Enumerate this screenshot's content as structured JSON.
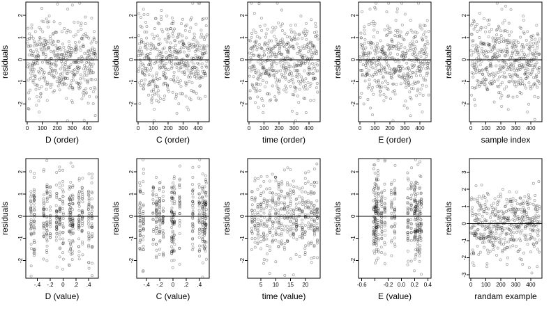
{
  "chart_data": [
    {
      "type": "scatter",
      "xlabel": "D (order)",
      "ylabel": "residuals",
      "xlim": [
        -10,
        475
      ],
      "ylim": [
        -2.8,
        2.6
      ],
      "xticks": [
        0,
        100,
        200,
        300,
        400
      ],
      "yticks": [
        -2,
        -1,
        0,
        1,
        2
      ],
      "n_points": 450,
      "x_kind": "index",
      "hline": 0,
      "seed": 11
    },
    {
      "type": "scatter",
      "xlabel": "C (order)",
      "ylabel": "residuals",
      "xlim": [
        -10,
        475
      ],
      "ylim": [
        -2.8,
        2.6
      ],
      "xticks": [
        0,
        100,
        200,
        300,
        400
      ],
      "yticks": [
        -2,
        -1,
        0,
        1,
        2
      ],
      "n_points": 450,
      "x_kind": "index",
      "hline": 0,
      "seed": 12
    },
    {
      "type": "scatter",
      "xlabel": "time (order)",
      "ylabel": "residuals",
      "xlim": [
        -10,
        475
      ],
      "ylim": [
        -2.8,
        2.6
      ],
      "xticks": [
        0,
        100,
        200,
        300,
        400
      ],
      "yticks": [
        -2,
        -1,
        0,
        1,
        2
      ],
      "n_points": 450,
      "x_kind": "index",
      "hline": 0,
      "seed": 13
    },
    {
      "type": "scatter",
      "xlabel": "E (order)",
      "ylabel": "residuals",
      "xlim": [
        -10,
        475
      ],
      "ylim": [
        -2.8,
        2.6
      ],
      "xticks": [
        0,
        100,
        200,
        300,
        400
      ],
      "yticks": [
        -2,
        -1,
        0,
        1,
        2
      ],
      "n_points": 450,
      "x_kind": "index",
      "hline": 0,
      "seed": 14
    },
    {
      "type": "scatter",
      "xlabel": "sample index",
      "ylabel": "residuals",
      "xlim": [
        -10,
        475
      ],
      "ylim": [
        -2.8,
        2.6
      ],
      "xticks": [
        0,
        100,
        200,
        300,
        400
      ],
      "yticks": [
        -2,
        -1,
        0,
        1,
        2
      ],
      "n_points": 450,
      "x_kind": "index",
      "hline": 0,
      "seed": 15
    },
    {
      "type": "scatter",
      "xlabel": "D (value)",
      "ylabel": "residuals",
      "xlim": [
        -0.58,
        0.55
      ],
      "ylim": [
        -2.8,
        2.6
      ],
      "xticks": [
        -0.4,
        -0.2,
        0,
        0.2,
        0.4
      ],
      "yticks": [
        -2,
        -1,
        0,
        1,
        2
      ],
      "n_points": 450,
      "x_kind": "columns",
      "x_levels": [
        -0.5,
        -0.45,
        -0.3,
        -0.25,
        -0.2,
        -0.1,
        -0.05,
        0,
        0.1,
        0.12,
        0.15,
        0.25,
        0.3,
        0.4,
        0.45
      ],
      "hline": 0,
      "seed": 21
    },
    {
      "type": "scatter",
      "xlabel": "C (value)",
      "ylabel": "residuals",
      "xlim": [
        -0.55,
        0.55
      ],
      "ylim": [
        -2.8,
        2.6
      ],
      "xticks": [
        -0.4,
        -0.2,
        0,
        0.2,
        0.4
      ],
      "yticks": [
        -2,
        -1,
        0,
        1,
        2
      ],
      "n_points": 450,
      "x_kind": "columns",
      "x_levels": [
        -0.5,
        -0.45,
        -0.3,
        -0.25,
        -0.2,
        -0.15,
        -0.02,
        0,
        0.02,
        0.1,
        0.3,
        0.4,
        0.45,
        0.48,
        0.5
      ],
      "hline": 0,
      "seed": 22
    },
    {
      "type": "scatter",
      "xlabel": "time (value)",
      "ylabel": "residuals",
      "xlim": [
        0.5,
        25
      ],
      "ylim": [
        -2.8,
        2.6
      ],
      "xticks": [
        5,
        10,
        15,
        20
      ],
      "yticks": [
        -2,
        -1,
        0,
        1,
        2
      ],
      "n_points": 450,
      "x_kind": "columns",
      "x_levels": [
        2,
        3,
        4,
        5,
        6,
        7,
        8,
        9,
        10,
        11,
        12,
        13,
        14,
        15,
        16,
        17,
        18,
        19,
        20,
        21,
        22,
        23,
        24
      ],
      "hline": 0,
      "seed": 23
    },
    {
      "type": "scatter",
      "xlabel": "E (value)",
      "ylabel": "residuals",
      "xlim": [
        -0.65,
        0.45
      ],
      "ylim": [
        -2.8,
        2.6
      ],
      "xticks": [
        -0.6,
        -0.4,
        -0.2,
        0,
        0.2,
        0.4
      ],
      "tick_labels": [
        "-0.6",
        "",
        "-0.2",
        "0.0",
        "0.2",
        "0.4"
      ],
      "yticks": [
        -2,
        -1,
        0,
        1,
        2
      ],
      "n_points": 450,
      "x_kind": "columns",
      "x_levels": [
        -0.42,
        -0.4,
        -0.38,
        -0.35,
        -0.3,
        -0.25,
        -0.15,
        -0.1,
        0.1,
        0.15,
        0.2,
        0.22,
        0.25,
        0.28,
        0.3
      ],
      "hline": 0,
      "seed": 24
    },
    {
      "type": "scatter",
      "xlabel": "randam example",
      "ylabel": "residuals",
      "xlim": [
        -10,
        475
      ],
      "ylim": [
        -3.2,
        3.8
      ],
      "xticks": [
        0,
        100,
        200,
        300,
        400
      ],
      "yticks": [
        -3,
        -2,
        -1,
        0,
        1,
        2,
        3
      ],
      "n_points": 450,
      "x_kind": "index",
      "hline": 0,
      "seed": 25
    }
  ]
}
